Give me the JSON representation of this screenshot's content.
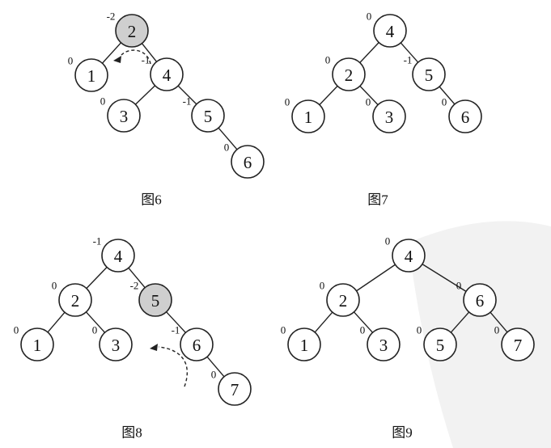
{
  "colors": {
    "highlight": "#cfcfcf",
    "stroke": "#222222",
    "watermark": "#f2f2f2"
  },
  "figures": [
    {
      "caption": "图6",
      "nodes": [
        {
          "id": "2",
          "label": "2",
          "bf": "-2",
          "highlight": true
        },
        {
          "id": "1",
          "label": "1",
          "bf": "0",
          "highlight": false
        },
        {
          "id": "4",
          "label": "4",
          "bf": "-1",
          "highlight": false
        },
        {
          "id": "3",
          "label": "3",
          "bf": "0",
          "highlight": false
        },
        {
          "id": "5",
          "label": "5",
          "bf": "-1",
          "highlight": false
        },
        {
          "id": "6",
          "label": "6",
          "bf": "0",
          "highlight": false
        }
      ],
      "edges": [
        [
          "2",
          "1"
        ],
        [
          "2",
          "4"
        ],
        [
          "4",
          "3"
        ],
        [
          "4",
          "5"
        ],
        [
          "5",
          "6"
        ]
      ],
      "rotation_arrow": "left"
    },
    {
      "caption": "图7",
      "nodes": [
        {
          "id": "4",
          "label": "4",
          "bf": "0",
          "highlight": false
        },
        {
          "id": "2",
          "label": "2",
          "bf": "0",
          "highlight": false
        },
        {
          "id": "5",
          "label": "5",
          "bf": "-1",
          "highlight": false
        },
        {
          "id": "1",
          "label": "1",
          "bf": "0",
          "highlight": false
        },
        {
          "id": "3",
          "label": "3",
          "bf": "0",
          "highlight": false
        },
        {
          "id": "6",
          "label": "6",
          "bf": "0",
          "highlight": false
        }
      ],
      "edges": [
        [
          "4",
          "2"
        ],
        [
          "4",
          "5"
        ],
        [
          "2",
          "1"
        ],
        [
          "2",
          "3"
        ],
        [
          "5",
          "6"
        ]
      ],
      "rotation_arrow": "none"
    },
    {
      "caption": "图8",
      "nodes": [
        {
          "id": "4",
          "label": "4",
          "bf": "-1",
          "highlight": false
        },
        {
          "id": "2",
          "label": "2",
          "bf": "0",
          "highlight": false
        },
        {
          "id": "5",
          "label": "5",
          "bf": "-2",
          "highlight": true
        },
        {
          "id": "1",
          "label": "1",
          "bf": "0",
          "highlight": false
        },
        {
          "id": "3",
          "label": "3",
          "bf": "0",
          "highlight": false
        },
        {
          "id": "6",
          "label": "6",
          "bf": "-1",
          "highlight": false
        },
        {
          "id": "7",
          "label": "7",
          "bf": "0",
          "highlight": false
        }
      ],
      "edges": [
        [
          "4",
          "2"
        ],
        [
          "4",
          "5"
        ],
        [
          "2",
          "1"
        ],
        [
          "2",
          "3"
        ],
        [
          "5",
          "6"
        ],
        [
          "6",
          "7"
        ]
      ],
      "rotation_arrow": "left"
    },
    {
      "caption": "图9",
      "nodes": [
        {
          "id": "4",
          "label": "4",
          "bf": "0",
          "highlight": false
        },
        {
          "id": "2",
          "label": "2",
          "bf": "0",
          "highlight": false
        },
        {
          "id": "6",
          "label": "6",
          "bf": "0",
          "highlight": false
        },
        {
          "id": "1",
          "label": "1",
          "bf": "0",
          "highlight": false
        },
        {
          "id": "3",
          "label": "3",
          "bf": "0",
          "highlight": false
        },
        {
          "id": "5",
          "label": "5",
          "bf": "0",
          "highlight": false
        },
        {
          "id": "7",
          "label": "7",
          "bf": "0",
          "highlight": false
        }
      ],
      "edges": [
        [
          "4",
          "2"
        ],
        [
          "4",
          "6"
        ],
        [
          "2",
          "1"
        ],
        [
          "2",
          "3"
        ],
        [
          "6",
          "5"
        ],
        [
          "6",
          "7"
        ]
      ],
      "rotation_arrow": "none"
    }
  ]
}
